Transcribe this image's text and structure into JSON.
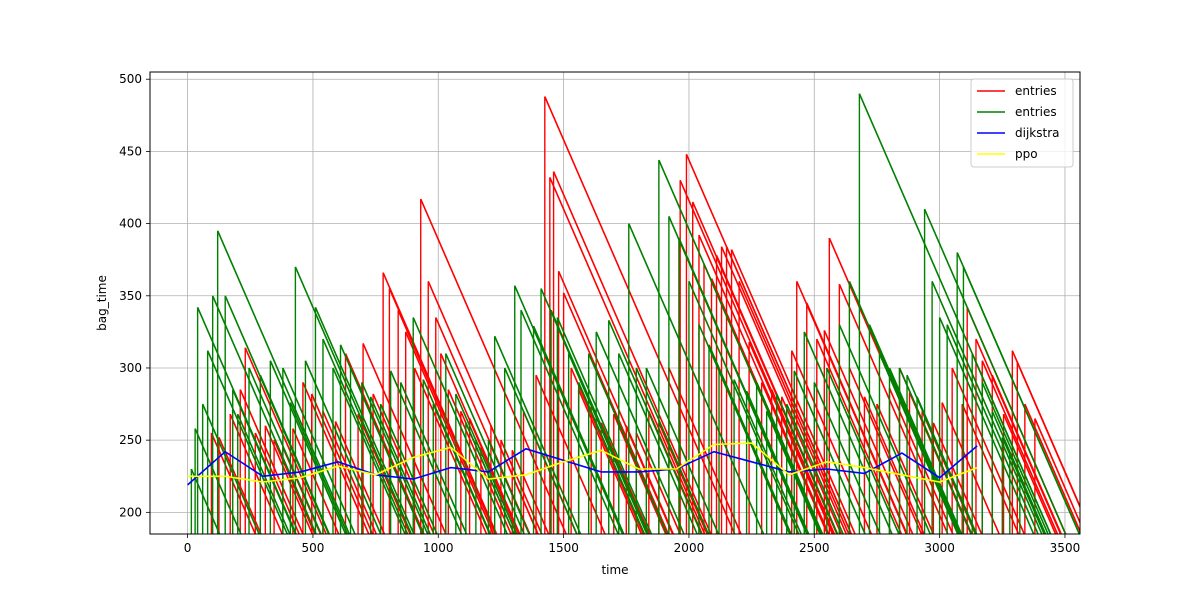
{
  "chart_data": {
    "type": "line",
    "title": "",
    "xlabel": "time",
    "ylabel": "bag_time",
    "xlim": [
      -150,
      3560
    ],
    "ylim": [
      185,
      505
    ],
    "xticks": [
      0,
      500,
      1000,
      1500,
      2000,
      2500,
      3000,
      3500
    ],
    "yticks": [
      200,
      250,
      300,
      350,
      400,
      450,
      500
    ],
    "grid": true,
    "legend": "top-right",
    "series": [
      {
        "name": "entries",
        "color": "#ff0000",
        "style": "sawtooth",
        "peaks": [
          [
            95,
            255
          ],
          [
            125,
            252
          ],
          [
            170,
            268
          ],
          [
            210,
            285
          ],
          [
            230,
            314
          ],
          [
            270,
            255
          ],
          [
            310,
            260
          ],
          [
            345,
            250
          ],
          [
            380,
            245
          ],
          [
            420,
            258
          ],
          [
            460,
            290
          ],
          [
            495,
            282
          ],
          [
            540,
            270
          ],
          [
            590,
            263
          ],
          [
            630,
            310
          ],
          [
            680,
            268
          ],
          [
            700,
            317
          ],
          [
            740,
            282
          ],
          [
            780,
            366
          ],
          [
            805,
            355
          ],
          [
            840,
            340
          ],
          [
            870,
            325
          ],
          [
            905,
            300
          ],
          [
            930,
            417
          ],
          [
            960,
            360
          ],
          [
            990,
            335
          ],
          [
            1010,
            310
          ],
          [
            1040,
            285
          ],
          [
            1090,
            270
          ],
          [
            1125,
            265
          ],
          [
            1170,
            245
          ],
          [
            1210,
            260
          ],
          [
            1250,
            250
          ],
          [
            1295,
            243
          ],
          [
            1340,
            270
          ],
          [
            1390,
            295
          ],
          [
            1425,
            488
          ],
          [
            1445,
            432
          ],
          [
            1460,
            436
          ],
          [
            1480,
            367
          ],
          [
            1500,
            352
          ],
          [
            1530,
            300
          ],
          [
            1560,
            285
          ],
          [
            1610,
            274
          ],
          [
            1650,
            262
          ],
          [
            1700,
            268
          ],
          [
            1750,
            260
          ],
          [
            1790,
            255
          ],
          [
            1840,
            270
          ],
          [
            1880,
            262
          ],
          [
            1920,
            300
          ],
          [
            1965,
            430
          ],
          [
            1990,
            448
          ],
          [
            2015,
            415
          ],
          [
            2040,
            392
          ],
          [
            2060,
            372
          ],
          [
            2090,
            362
          ],
          [
            2110,
            378
          ],
          [
            2130,
            384
          ],
          [
            2150,
            384
          ],
          [
            2170,
            382
          ],
          [
            2200,
            360
          ],
          [
            2240,
            318
          ],
          [
            2290,
            290
          ],
          [
            2330,
            285
          ],
          [
            2370,
            280
          ],
          [
            2410,
            312
          ],
          [
            2430,
            360
          ],
          [
            2470,
            345
          ],
          [
            2510,
            320
          ],
          [
            2540,
            326
          ],
          [
            2560,
            390
          ],
          [
            2600,
            358
          ],
          [
            2640,
            300
          ],
          [
            2700,
            280
          ],
          [
            2750,
            275
          ],
          [
            2800,
            286
          ],
          [
            2840,
            300
          ],
          [
            2880,
            283
          ],
          [
            2930,
            270
          ],
          [
            2975,
            262
          ],
          [
            3010,
            276
          ],
          [
            3050,
            300
          ],
          [
            3090,
            275
          ],
          [
            3110,
            342
          ],
          [
            3145,
            320
          ],
          [
            3170,
            305
          ],
          [
            3210,
            295
          ],
          [
            3255,
            268
          ],
          [
            3290,
            312
          ],
          [
            3310,
            304
          ],
          [
            3340,
            275
          ],
          [
            3380,
            265
          ]
        ]
      },
      {
        "name": "entries",
        "color": "#008000",
        "style": "sawtooth",
        "peaks": [
          [
            15,
            230
          ],
          [
            30,
            258
          ],
          [
            40,
            342
          ],
          [
            60,
            275
          ],
          [
            80,
            312
          ],
          [
            100,
            350
          ],
          [
            120,
            395
          ],
          [
            150,
            350
          ],
          [
            180,
            285
          ],
          [
            200,
            268
          ],
          [
            245,
            300
          ],
          [
            290,
            295
          ],
          [
            330,
            305
          ],
          [
            380,
            300
          ],
          [
            410,
            276
          ],
          [
            430,
            370
          ],
          [
            470,
            305
          ],
          [
            510,
            342
          ],
          [
            540,
            320
          ],
          [
            580,
            300
          ],
          [
            610,
            316
          ],
          [
            650,
            300
          ],
          [
            695,
            290
          ],
          [
            730,
            280
          ],
          [
            770,
            275
          ],
          [
            810,
            298
          ],
          [
            850,
            290
          ],
          [
            900,
            335
          ],
          [
            940,
            292
          ],
          [
            980,
            275
          ],
          [
            1030,
            310
          ],
          [
            1070,
            282
          ],
          [
            1110,
            262
          ],
          [
            1150,
            250
          ],
          [
            1200,
            250
          ],
          [
            1225,
            322
          ],
          [
            1265,
            300
          ],
          [
            1305,
            357
          ],
          [
            1330,
            340
          ],
          [
            1380,
            329
          ],
          [
            1410,
            355
          ],
          [
            1450,
            340
          ],
          [
            1475,
            335
          ],
          [
            1520,
            310
          ],
          [
            1560,
            290
          ],
          [
            1600,
            310
          ],
          [
            1630,
            325
          ],
          [
            1680,
            333
          ],
          [
            1720,
            310
          ],
          [
            1760,
            400
          ],
          [
            1790,
            300
          ],
          [
            1830,
            300
          ],
          [
            1880,
            444
          ],
          [
            1920,
            405
          ],
          [
            1960,
            390
          ],
          [
            2000,
            360
          ],
          [
            2040,
            330
          ],
          [
            2080,
            316
          ],
          [
            2120,
            298
          ],
          [
            2180,
            292
          ],
          [
            2230,
            284
          ],
          [
            2270,
            290
          ],
          [
            2310,
            270
          ],
          [
            2350,
            282
          ],
          [
            2390,
            275
          ],
          [
            2420,
            298
          ],
          [
            2460,
            325
          ],
          [
            2500,
            290
          ],
          [
            2550,
            300
          ],
          [
            2600,
            330
          ],
          [
            2640,
            360
          ],
          [
            2680,
            490
          ],
          [
            2720,
            330
          ],
          [
            2760,
            310
          ],
          [
            2800,
            300
          ],
          [
            2840,
            300
          ],
          [
            2870,
            295
          ],
          [
            2910,
            280
          ],
          [
            2940,
            410
          ],
          [
            2970,
            360
          ],
          [
            3000,
            335
          ],
          [
            3030,
            330
          ],
          [
            3070,
            380
          ],
          [
            3095,
            370
          ],
          [
            3130,
            310
          ],
          [
            3170,
            290
          ],
          [
            3210,
            270
          ],
          [
            3250,
            252
          ],
          [
            3280,
            240
          ],
          [
            3320,
            225
          ]
        ]
      },
      {
        "name": "dijkstra",
        "color": "#0000ff",
        "style": "line",
        "x": [
          0,
          150,
          300,
          450,
          600,
          750,
          900,
          1050,
          1200,
          1350,
          1500,
          1650,
          1800,
          1950,
          2100,
          2250,
          2400,
          2550,
          2700,
          2850,
          3000,
          3150
        ],
        "y": [
          219,
          242,
          225,
          228,
          235,
          226,
          223,
          231,
          228,
          244,
          236,
          228,
          228,
          230,
          242,
          235,
          228,
          230,
          227,
          241,
          224,
          246
        ]
      },
      {
        "name": "ppo",
        "color": "#ffff00",
        "style": "line",
        "x": [
          0,
          150,
          300,
          450,
          600,
          750,
          900,
          1050,
          1200,
          1350,
          1500,
          1650,
          1800,
          1950,
          2100,
          2250,
          2400,
          2550,
          2700,
          2850,
          3000,
          3150
        ],
        "y": [
          225,
          225,
          221,
          224,
          232,
          226,
          238,
          245,
          223,
          226,
          235,
          243,
          230,
          230,
          247,
          248,
          226,
          235,
          231,
          226,
          221,
          231
        ]
      }
    ]
  }
}
